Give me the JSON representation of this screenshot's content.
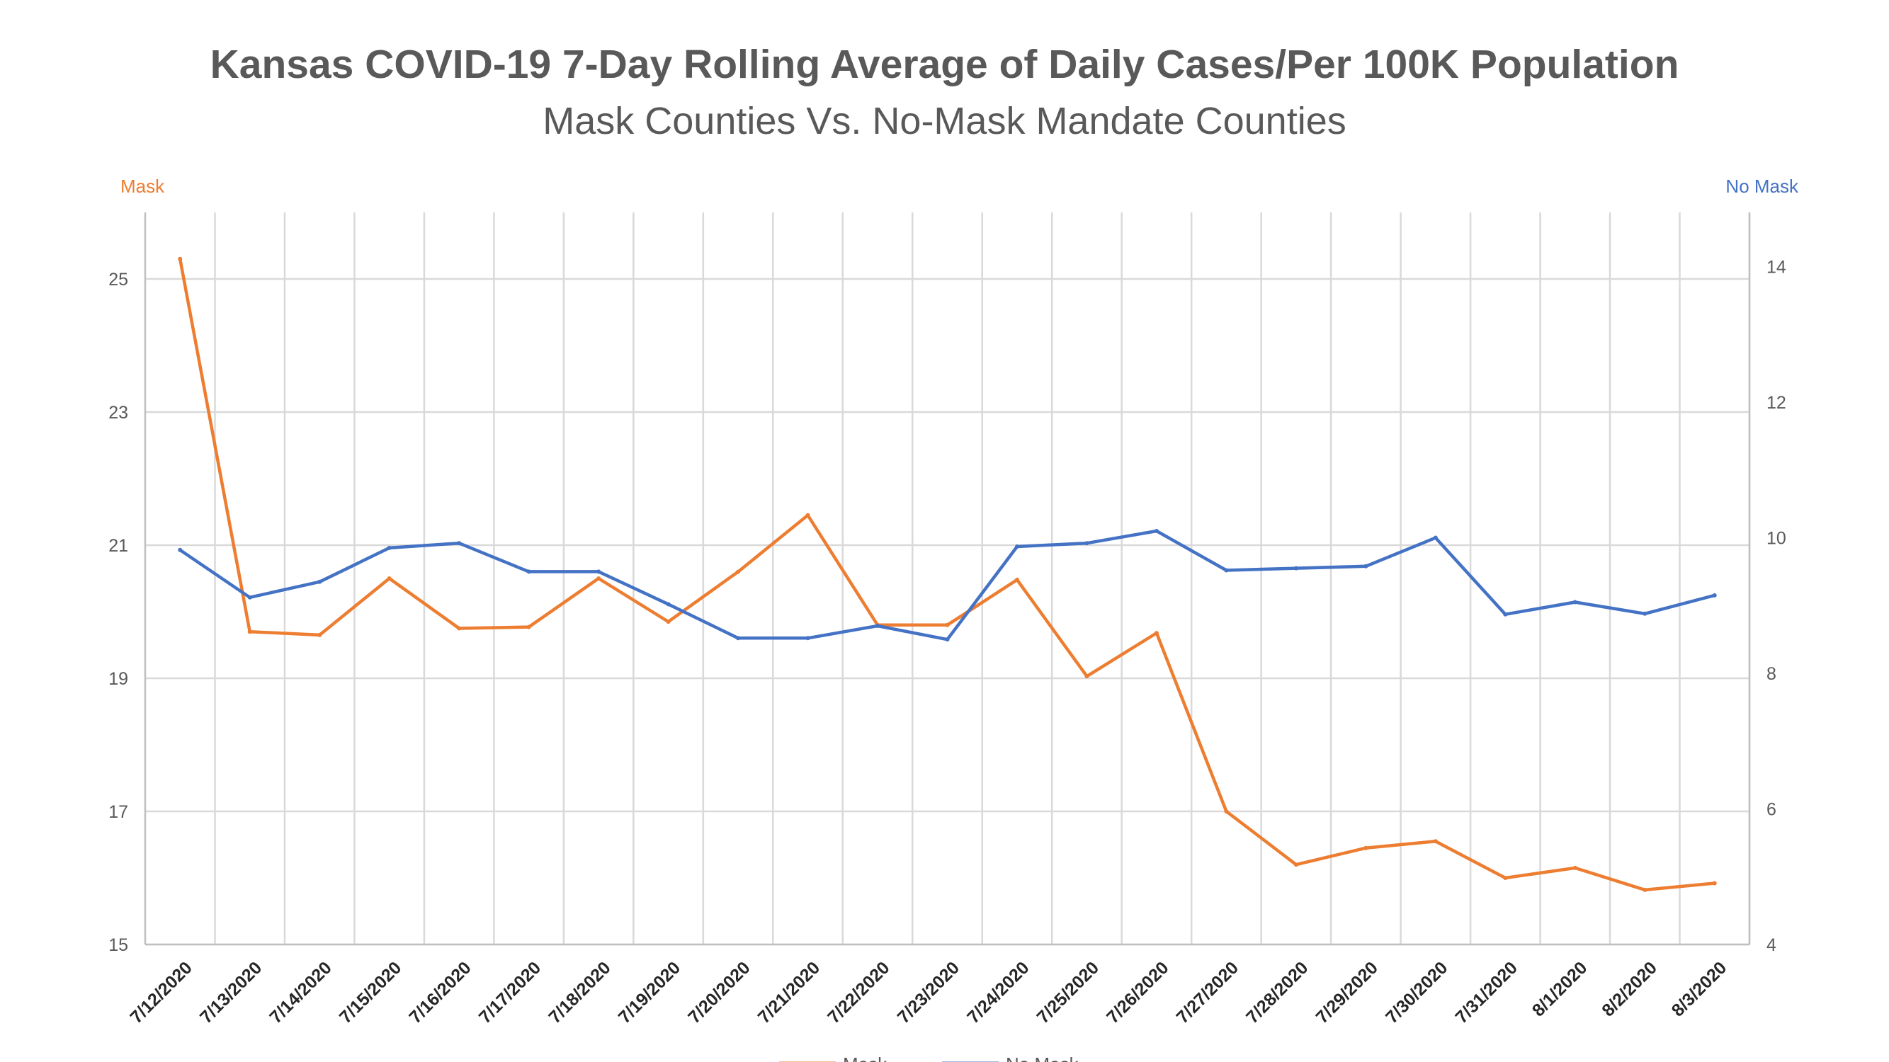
{
  "colors": {
    "mask": "#ED7D31",
    "no_mask": "#4472C4",
    "grid": "#D9D9D9",
    "axis": "#BFBFBF",
    "text": "#595959"
  },
  "chart_data": {
    "type": "line",
    "title": "Kansas COVID-19 7-Day Rolling Average of Daily Cases/Per 100K Population",
    "subtitle": "Mask Counties Vs. No-Mask Mandate Counties",
    "ylabel": "Mask",
    "y2label": "No Mask",
    "xlabel": "",
    "ylim": [
      15,
      26
    ],
    "y2lim": [
      4,
      14.8
    ],
    "yticks": [
      15,
      17,
      19,
      21,
      23,
      25
    ],
    "y2ticks": [
      4,
      6,
      8,
      10,
      12,
      14
    ],
    "grid": true,
    "legend_position": "bottom",
    "x": [
      "7/12/2020",
      "7/13/2020",
      "7/14/2020",
      "7/15/2020",
      "7/16/2020",
      "7/17/2020",
      "7/18/2020",
      "7/19/2020",
      "7/20/2020",
      "7/21/2020",
      "7/22/2020",
      "7/23/2020",
      "7/24/2020",
      "7/25/2020",
      "7/26/2020",
      "7/27/2020",
      "7/28/2020",
      "7/29/2020",
      "7/30/2020",
      "7/31/2020",
      "8/1/2020",
      "8/2/2020",
      "8/3/2020"
    ],
    "series": [
      {
        "name": "Mask",
        "axis": "left",
        "color": "#ED7D31",
        "values": [
          25.3,
          19.7,
          19.65,
          20.5,
          19.75,
          19.77,
          20.5,
          19.85,
          20.6,
          21.45,
          19.8,
          19.8,
          20.48,
          19.03,
          19.68,
          17.0,
          16.2,
          16.45,
          16.55,
          16.0,
          16.15,
          15.82,
          15.92
        ]
      },
      {
        "name": "No Mask",
        "axis": "right",
        "color": "#4472C4",
        "values": [
          9.82,
          9.12,
          9.35,
          9.85,
          9.92,
          9.5,
          9.5,
          9.02,
          8.52,
          8.52,
          8.7,
          8.5,
          9.87,
          9.92,
          10.1,
          9.52,
          9.55,
          9.58,
          10.0,
          8.87,
          9.05,
          8.88,
          9.15
        ]
      }
    ]
  }
}
